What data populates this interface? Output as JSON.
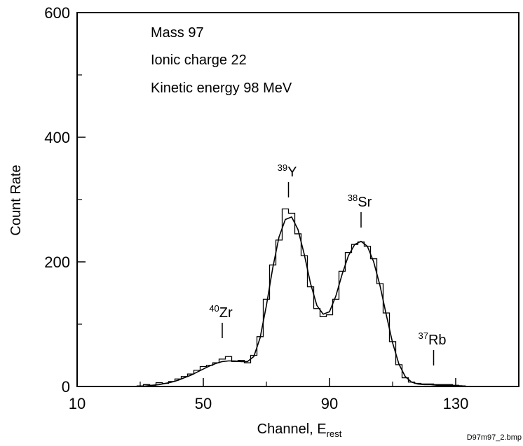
{
  "chart_data": {
    "type": "line",
    "xlabel": "Channel, E",
    "xlabel_sub": "rest",
    "ylabel": "Count Rate",
    "xlim": [
      10,
      150
    ],
    "ylim": [
      0,
      600
    ],
    "x_ticks": [
      10,
      50,
      90,
      130
    ],
    "x_minor_ticks": [
      30,
      70,
      110
    ],
    "y_ticks": [
      0,
      200,
      400,
      600
    ],
    "y_minor_ticks": [
      100,
      300,
      500
    ],
    "annotations": [
      "Mass 97",
      "Ionic charge 22",
      "Kinetic energy 98 MeV"
    ],
    "peaks": [
      {
        "mass": "40",
        "element": "Zr",
        "x": 56
      },
      {
        "mass": "39",
        "element": "Y",
        "x": 77
      },
      {
        "mass": "38",
        "element": "Sr",
        "x": 100
      },
      {
        "mass": "37",
        "element": "Rb",
        "x": 123
      }
    ],
    "series": [
      {
        "style": "histogram",
        "x": [
          28,
          30,
          32,
          34,
          36,
          38,
          40,
          42,
          44,
          46,
          48,
          50,
          52,
          54,
          56,
          58,
          60,
          62,
          64,
          66,
          68,
          70,
          72,
          74,
          76,
          78,
          80,
          82,
          84,
          86,
          88,
          90,
          92,
          94,
          96,
          98,
          100,
          102,
          104,
          106,
          108,
          110,
          112,
          114,
          116,
          118,
          120,
          122,
          124,
          126,
          128,
          130,
          132,
          134
        ],
        "values": [
          0,
          1,
          3,
          2,
          6,
          5,
          8,
          12,
          16,
          20,
          26,
          32,
          34,
          38,
          44,
          48,
          40,
          42,
          38,
          50,
          80,
          140,
          195,
          235,
          285,
          278,
          245,
          210,
          160,
          125,
          112,
          115,
          140,
          185,
          215,
          228,
          232,
          225,
          205,
          165,
          118,
          72,
          35,
          14,
          7,
          5,
          4,
          4,
          3,
          3,
          3,
          2,
          1,
          0
        ]
      },
      {
        "style": "fit",
        "x": [
          28,
          30,
          32,
          34,
          36,
          38,
          40,
          42,
          44,
          46,
          48,
          50,
          52,
          54,
          56,
          58,
          60,
          62,
          64,
          66,
          68,
          70,
          72,
          74,
          76,
          78,
          80,
          82,
          84,
          86,
          88,
          90,
          92,
          94,
          96,
          98,
          100,
          102,
          104,
          106,
          108,
          110,
          112,
          114,
          116,
          118,
          120,
          122,
          124,
          126,
          128,
          130,
          132,
          134
        ],
        "values": [
          0,
          0,
          1,
          2,
          3,
          5,
          7,
          10,
          14,
          18,
          23,
          28,
          33,
          37,
          40,
          41,
          41,
          40,
          40,
          48,
          78,
          130,
          190,
          240,
          268,
          272,
          252,
          212,
          165,
          130,
          116,
          120,
          145,
          180,
          210,
          228,
          233,
          225,
          200,
          162,
          115,
          70,
          36,
          16,
          7,
          4,
          3,
          3,
          2,
          2,
          2,
          1,
          1,
          0
        ]
      }
    ]
  },
  "footer": {
    "image_label": "D97m97_2.bmp"
  }
}
